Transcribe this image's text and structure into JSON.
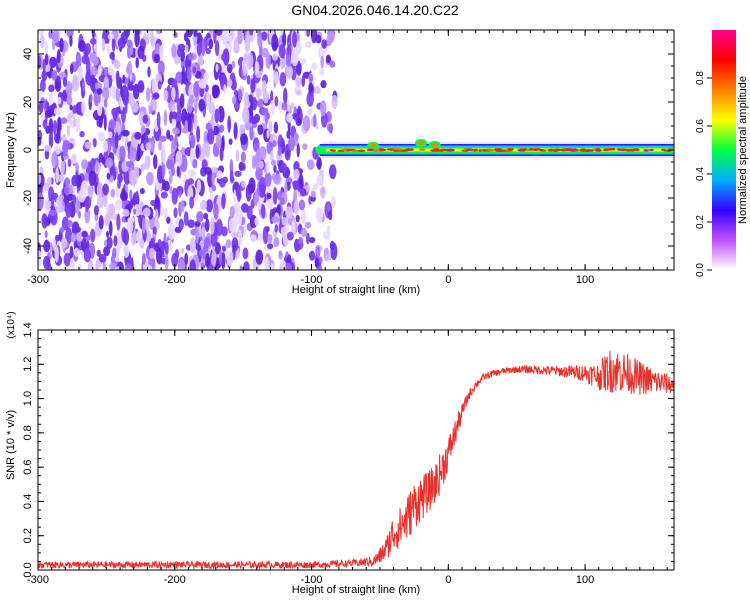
{
  "title": "GN04.2026.046.14.20.C22",
  "colors": {
    "spectro_dots": "#6a2fe6",
    "line": "#e8302c",
    "axis": "#000000"
  },
  "chart_data": [
    {
      "type": "heatmap",
      "xlabel": "Height of straight line (km)",
      "ylabel": "Frequency (Hz)",
      "xlim": [
        -300,
        165
      ],
      "ylim": [
        -50,
        50
      ],
      "x_ticks": [
        -300,
        -200,
        -100,
        0,
        100
      ],
      "y_ticks": [
        -40,
        -20,
        0,
        20,
        40
      ],
      "noise_region_x": [
        -300,
        -78
      ],
      "signal_band": {
        "center_frequency": 0,
        "x_start": -97,
        "x_end": 165
      },
      "colorbar": {
        "label": "Normalized spectral amplitude",
        "range": [
          0.0,
          1.0
        ],
        "ticks": [
          "0.0",
          "0.2",
          "0.4",
          "0.6",
          "0.8"
        ],
        "tick_values": [
          0.0,
          0.2,
          0.4,
          0.6,
          0.8
        ],
        "stops": [
          "#ffffff",
          "#c050ff",
          "#3000ff",
          "#00b0ff",
          "#00ff40",
          "#ffff00",
          "#ff8000",
          "#ff0000",
          "#ff0090"
        ]
      }
    },
    {
      "type": "line",
      "xlabel": "Height of straight line (km)",
      "ylabel": "SNR (10 * v/v)",
      "y_multiplier": "(x10⁴)",
      "xlim": [
        -300,
        165
      ],
      "ylim": [
        0.0,
        1.4
      ],
      "x_ticks": [
        -300,
        -200,
        -100,
        0,
        100
      ],
      "y_ticks": [
        "0.0",
        "0.2",
        "0.4",
        "0.6",
        "0.8",
        "1.0",
        "1.2",
        "1.4"
      ],
      "y_tick_values": [
        0.0,
        0.2,
        0.4,
        0.6,
        0.8,
        1.0,
        1.2,
        1.4
      ],
      "series": [
        {
          "color": "#e8302c",
          "x": [
            -300,
            -200,
            -100,
            -70,
            -55,
            -50,
            -45,
            -40,
            -35,
            -30,
            -25,
            -20,
            -15,
            -10,
            -5,
            0,
            5,
            10,
            15,
            20,
            25,
            30,
            40,
            50,
            60,
            80,
            100,
            110,
            120,
            130,
            140,
            150,
            165
          ],
          "y": [
            0.03,
            0.03,
            0.03,
            0.04,
            0.05,
            0.08,
            0.13,
            0.22,
            0.25,
            0.3,
            0.38,
            0.42,
            0.45,
            0.5,
            0.58,
            0.68,
            0.8,
            0.92,
            1.02,
            1.08,
            1.12,
            1.14,
            1.16,
            1.17,
            1.17,
            1.16,
            1.15,
            1.13,
            1.17,
            1.15,
            1.12,
            1.1,
            1.08
          ],
          "noise_amplitude": [
            0.02,
            0.02,
            0.02,
            0.02,
            0.03,
            0.05,
            0.07,
            0.12,
            0.12,
            0.14,
            0.14,
            0.14,
            0.12,
            0.12,
            0.12,
            0.1,
            0.08,
            0.05,
            0.03,
            0.025,
            0.02,
            0.02,
            0.02,
            0.02,
            0.025,
            0.03,
            0.05,
            0.08,
            0.14,
            0.12,
            0.1,
            0.08,
            0.05
          ]
        }
      ]
    }
  ]
}
